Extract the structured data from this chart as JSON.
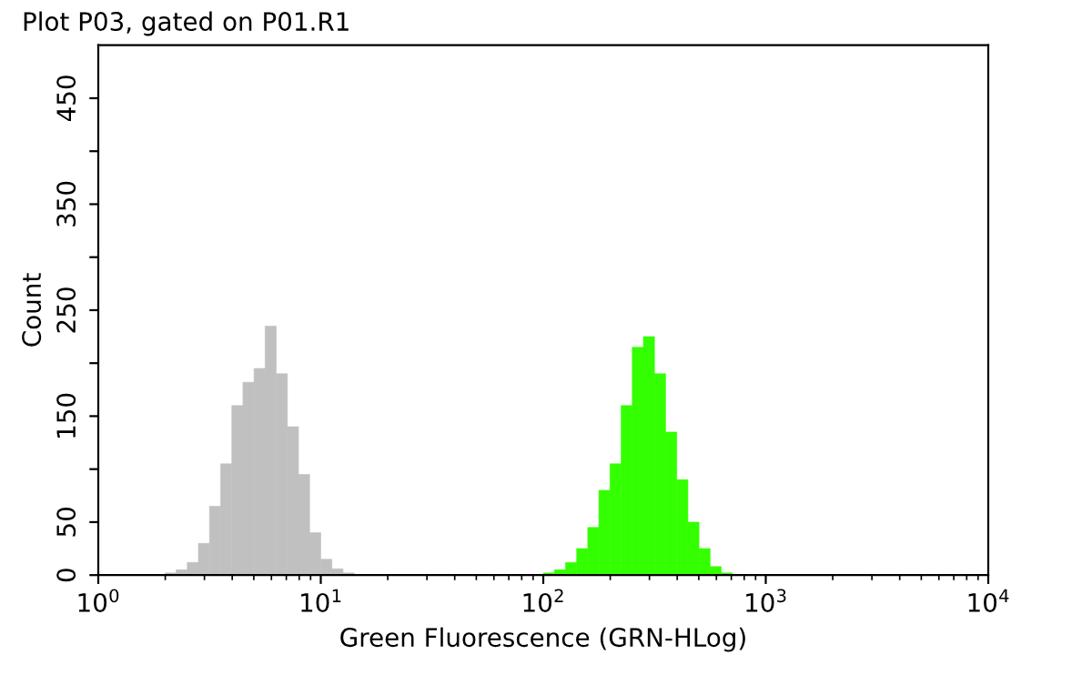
{
  "chart_data": {
    "type": "histogram",
    "title": "Plot P03, gated on P01.R1",
    "xlabel": "Green Fluorescence (GRN-HLog)",
    "ylabel": "Count",
    "log": "x",
    "xlim": [
      1,
      10000
    ],
    "xticks": [
      {
        "value": 1,
        "label": "10$^{0}$"
      },
      {
        "value": 10,
        "label": "10$^{1}$"
      },
      {
        "value": 100,
        "label": "10$^{2}$"
      },
      {
        "value": 1000,
        "label": "10$^{3}$"
      },
      {
        "value": 10000,
        "label": "10$^{4}$"
      }
    ],
    "ylim": [
      0,
      500
    ],
    "yticks": [
      0,
      50,
      {
        "value": 100,
        "label": null
      },
      150,
      {
        "value": 200,
        "label": null
      },
      250,
      {
        "value": 300,
        "label": null
      },
      350,
      {
        "value": 400,
        "label": null
      },
      450
    ],
    "bins": [
      1.995,
      2.239,
      2.512,
      2.818,
      3.162,
      3.548,
      3.981,
      4.467,
      5.012,
      5.623,
      6.31,
      7.079,
      7.943,
      8.913,
      10,
      11.22,
      12.59,
      14.13,
      15.85,
      17.78,
      19.95,
      22.39,
      25.12,
      28.18,
      31.62,
      35.48,
      39.81,
      44.67,
      50.12,
      56.23,
      63.1,
      70.79,
      79.43,
      89.13,
      100,
      112.2,
      125.9,
      141.3,
      158.5,
      177.8,
      199.5,
      223.9,
      251.2,
      281.8,
      316.2,
      354.8,
      398.1,
      446.7,
      501.2,
      562.3,
      631.0,
      707.9
    ],
    "series": [
      {
        "color": "#c0c0c0",
        "values": [
          2,
          5,
          12,
          30,
          65,
          105,
          160,
          182,
          195,
          235,
          190,
          140,
          95,
          40,
          15,
          6,
          2,
          0,
          0,
          0,
          0,
          0,
          0,
          0,
          0,
          0,
          0,
          0,
          0,
          0,
          0,
          0,
          0,
          0,
          0,
          0,
          0,
          0,
          0,
          0,
          0,
          0,
          0,
          0,
          0,
          0,
          0,
          0,
          0,
          0,
          0
        ]
      },
      {
        "color": "#33ff00",
        "values": [
          0,
          0,
          0,
          0,
          0,
          0,
          0,
          0,
          0,
          0,
          0,
          0,
          0,
          0,
          0,
          0,
          0,
          0,
          0,
          0,
          0,
          0,
          0,
          0,
          0,
          0,
          0,
          0,
          0,
          0,
          0,
          0,
          0,
          0,
          2,
          5,
          12,
          25,
          45,
          80,
          105,
          160,
          215,
          225,
          190,
          135,
          90,
          50,
          25,
          8,
          2
        ]
      }
    ]
  }
}
